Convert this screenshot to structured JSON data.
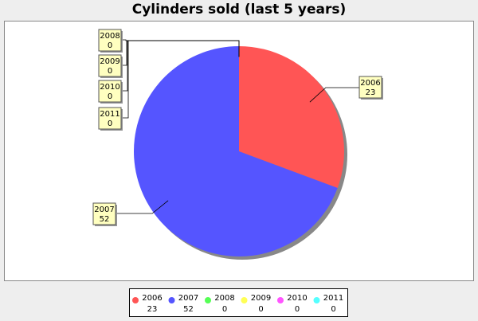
{
  "chart_data": {
    "type": "pie",
    "title": "Cylinders sold (last 5 years)",
    "slices": [
      {
        "label": "2006",
        "value": 23,
        "color": "#ff5555"
      },
      {
        "label": "2007",
        "value": 52,
        "color": "#5555ff"
      },
      {
        "label": "2008",
        "value": 0,
        "color": "#55ff55"
      },
      {
        "label": "2009",
        "value": 0,
        "color": "#ffff55"
      },
      {
        "label": "2010",
        "value": 0,
        "color": "#ff55ff"
      },
      {
        "label": "2011",
        "value": 0,
        "color": "#55ffff"
      }
    ],
    "legend_position": "bottom"
  }
}
